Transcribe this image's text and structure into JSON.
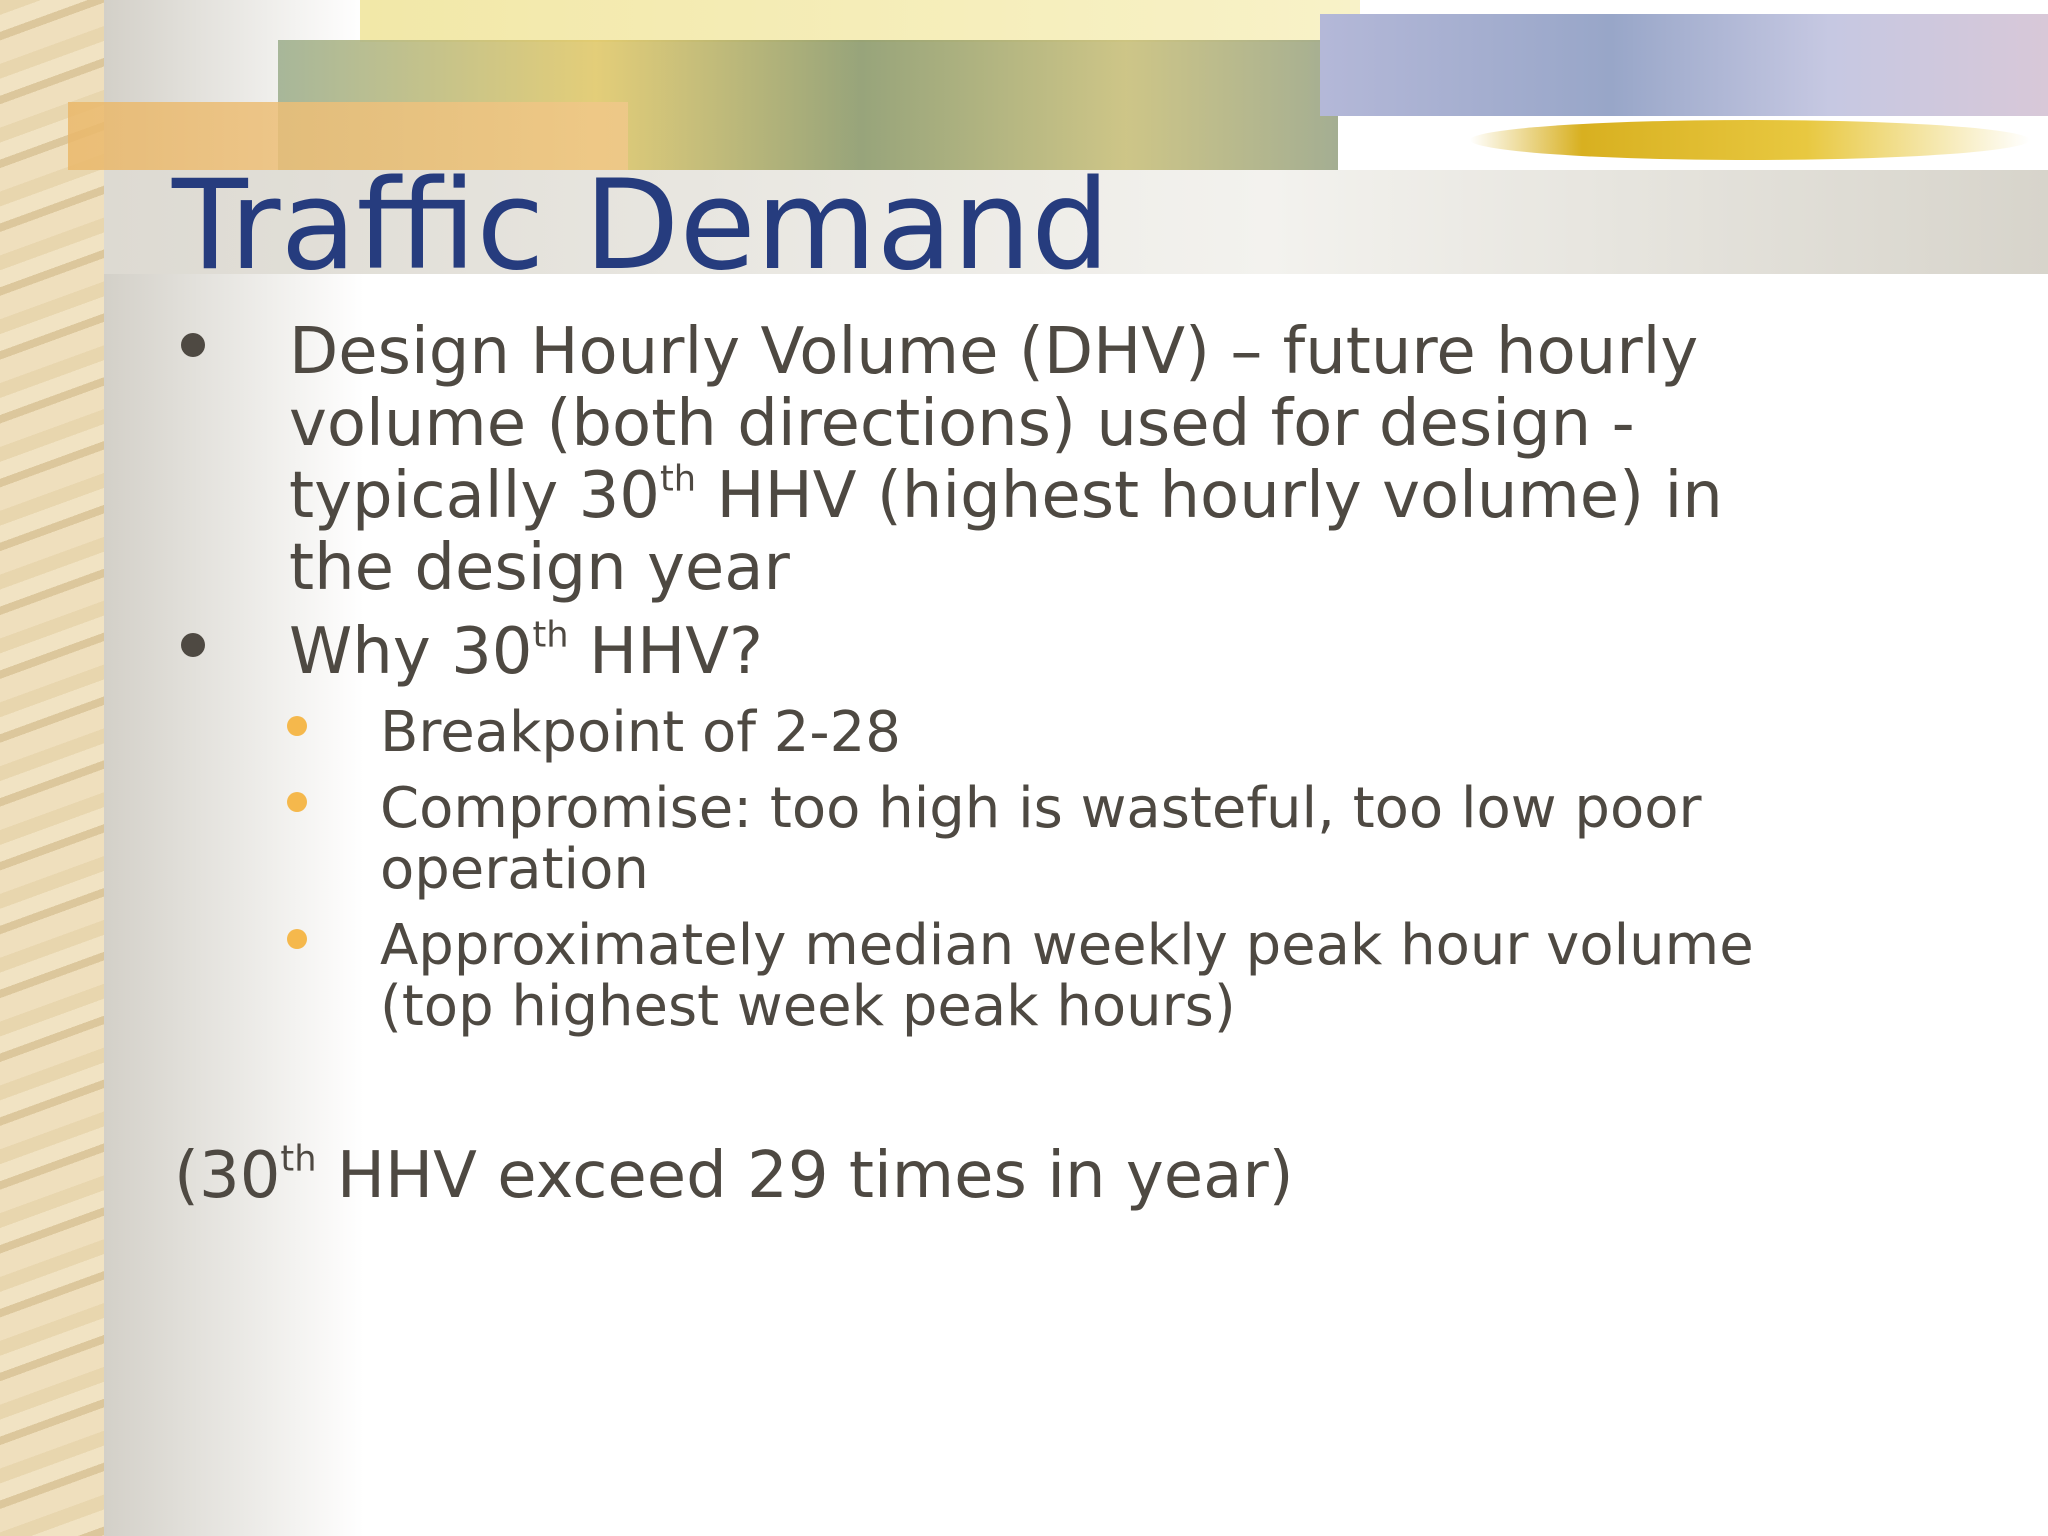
{
  "title": "Traffic Demand",
  "bullets": [
    {
      "pre": "Design Hourly Volume (DHV) – future hourly volume (both directions) used for design - typically 30",
      "sup": "th",
      "post": " HHV  (highest hourly volume) in the design year"
    },
    {
      "pre": "Why 30",
      "sup": "th",
      "post": " HHV?",
      "subs": [
        "Breakpoint of 2-28",
        "Compromise:  too high is wasteful, too low poor operation",
        "Approximately median weekly peak hour volume (top highest week peak hours)"
      ]
    }
  ],
  "note": {
    "pre": "(30",
    "sup": "th",
    "post": " HHV exceed 29 times in year)"
  }
}
